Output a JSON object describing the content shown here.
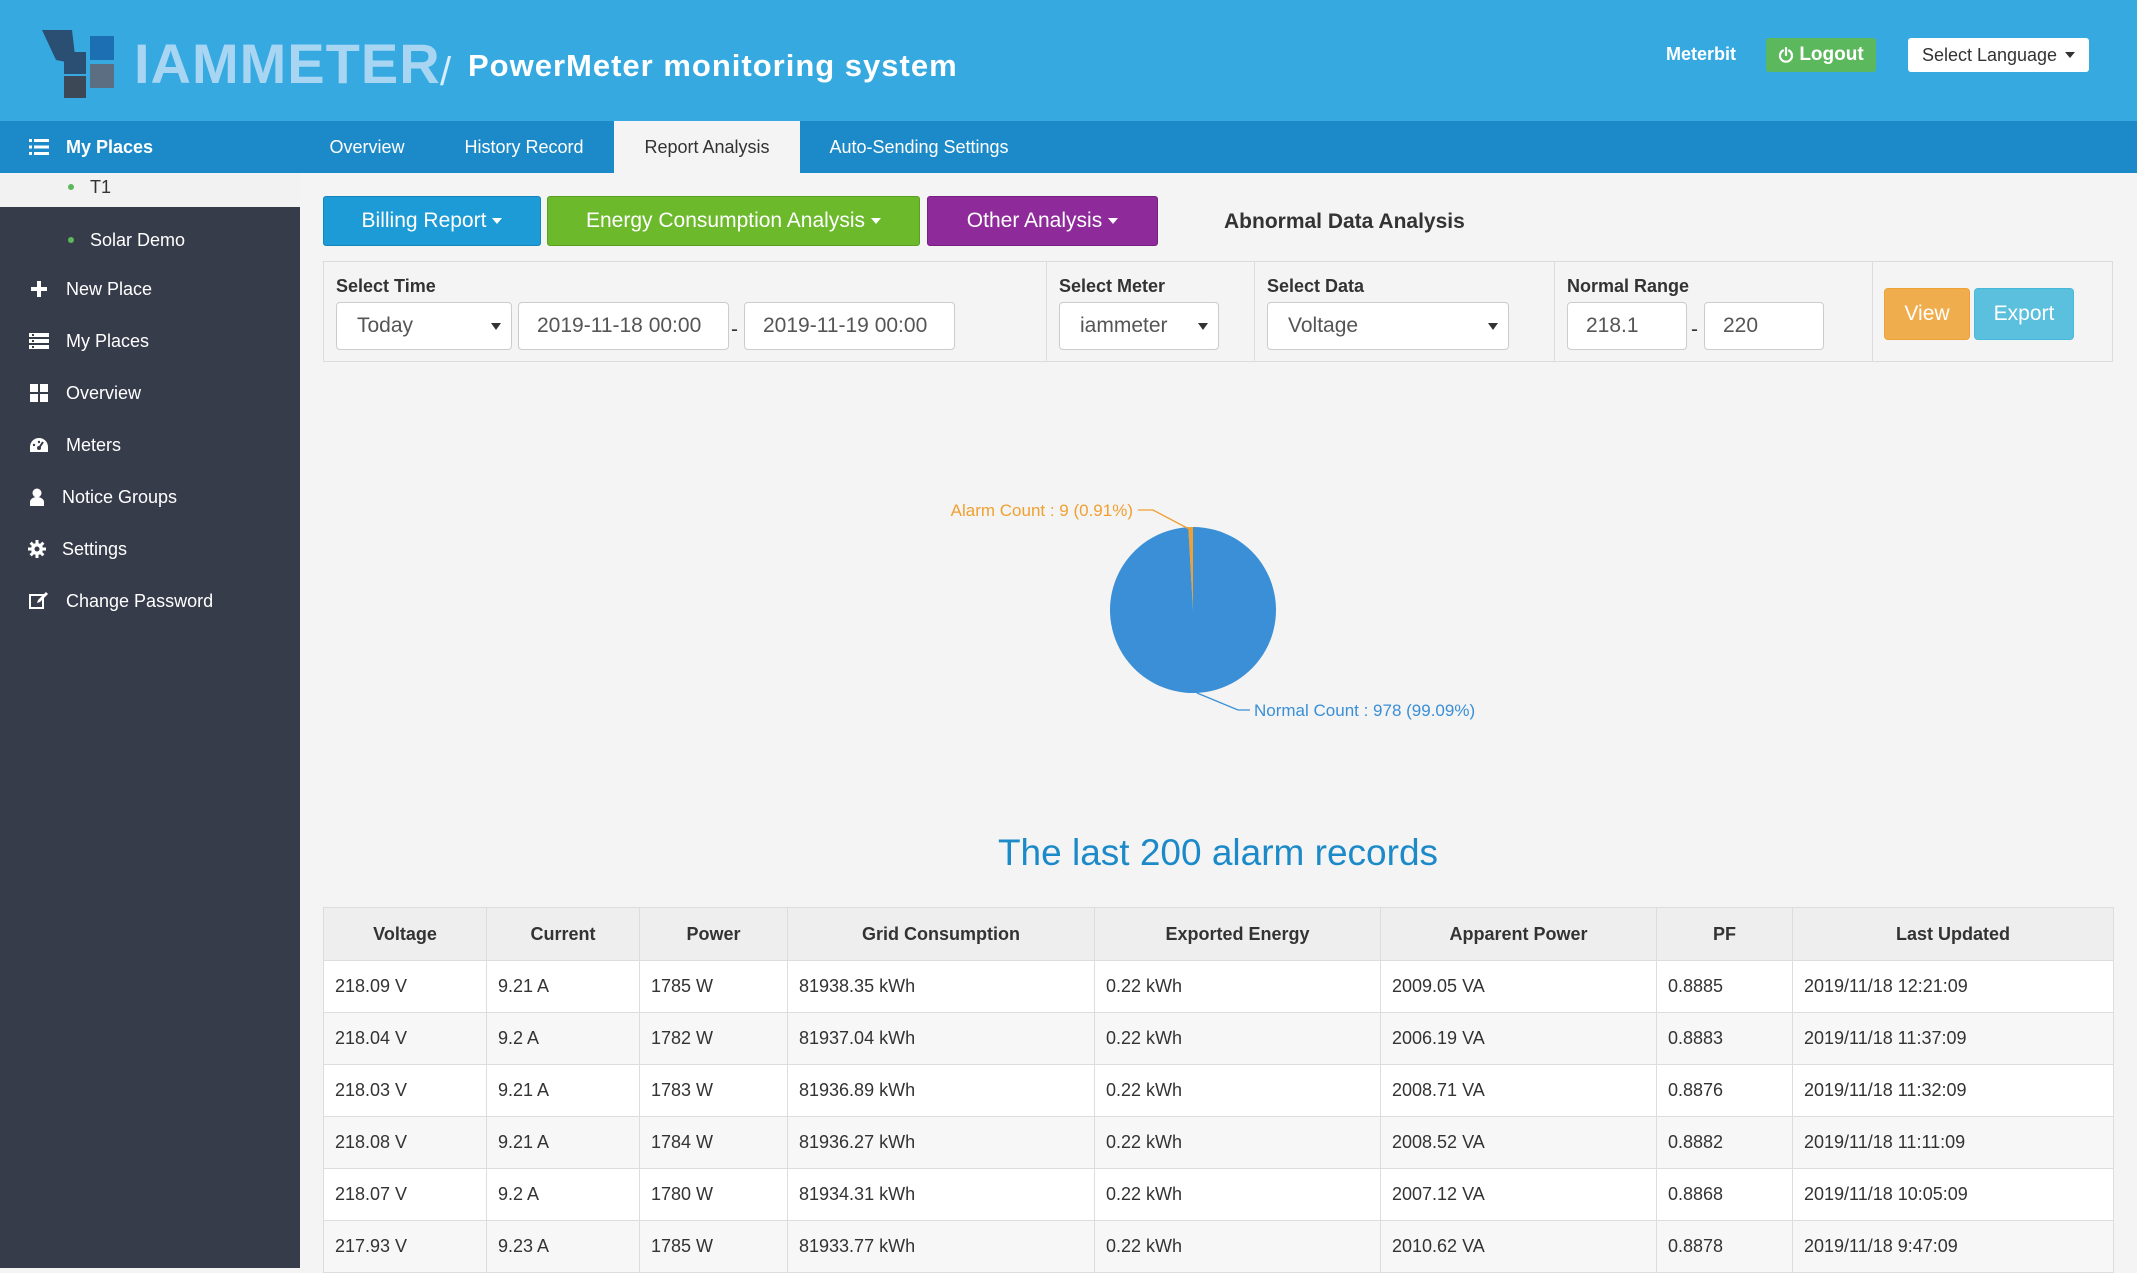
{
  "header": {
    "logo_text": "IAMMETER",
    "system_title": "PowerMeter monitoring system",
    "user_name": "Meterbit",
    "logout_label": "Logout",
    "language_label": "Select Language"
  },
  "sidebar": {
    "head_label": "My Places",
    "places": [
      {
        "label": "T1"
      },
      {
        "label": "Solar Demo"
      }
    ],
    "nav": [
      {
        "label": "New Place",
        "icon": "plus-icon"
      },
      {
        "label": "My Places",
        "icon": "list-icon"
      },
      {
        "label": "Overview",
        "icon": "grid-icon"
      },
      {
        "label": "Meters",
        "icon": "dashboard-icon"
      },
      {
        "label": "Notice Groups",
        "icon": "user-icon"
      },
      {
        "label": "Settings",
        "icon": "gear-icon"
      },
      {
        "label": "Change Password",
        "icon": "edit-icon"
      }
    ]
  },
  "tabs": [
    {
      "label": "Overview"
    },
    {
      "label": "History Record"
    },
    {
      "label": "Report Analysis"
    },
    {
      "label": "Auto-Sending Settings"
    }
  ],
  "active_tab": "Report Analysis",
  "report_menu": {
    "billing_label": "Billing Report",
    "energy_label": "Energy Consumption Analysis",
    "other_label": "Other Analysis",
    "abnormal_label": "Abnormal Data Analysis"
  },
  "filter": {
    "time_label": "Select Time",
    "time_value": "Today",
    "start": "2019-11-18 00:00",
    "end": "2019-11-19 00:00",
    "meter_label": "Select Meter",
    "meter_value": "iammeter",
    "data_label": "Select Data",
    "data_value": "Voltage",
    "range_label": "Normal Range",
    "range_min": "218.1",
    "range_max": "220",
    "view_label": "View",
    "export_label": "Export"
  },
  "chart_data": {
    "type": "pie",
    "slices": [
      {
        "label": "Alarm Count : 9 (0.91%)",
        "name": "Alarm Count",
        "value": 9,
        "percent": 0.91,
        "color": "#f0a030"
      },
      {
        "label": "Normal Count : 978 (99.09%)",
        "name": "Normal Count",
        "value": 978,
        "percent": 99.09,
        "color": "#3a8fd6"
      }
    ]
  },
  "records": {
    "title": "The last 200 alarm records",
    "columns": [
      "Voltage",
      "Current",
      "Power",
      "Grid Consumption",
      "Exported Energy",
      "Apparent Power",
      "PF",
      "Last Updated"
    ],
    "rows": [
      [
        "218.09 V",
        "9.21 A",
        "1785 W",
        "81938.35 kWh",
        "0.22 kWh",
        "2009.05 VA",
        "0.8885",
        "2019/11/18 12:21:09"
      ],
      [
        "218.04 V",
        "9.2 A",
        "1782 W",
        "81937.04 kWh",
        "0.22 kWh",
        "2006.19 VA",
        "0.8883",
        "2019/11/18 11:37:09"
      ],
      [
        "218.03 V",
        "9.21 A",
        "1783 W",
        "81936.89 kWh",
        "0.22 kWh",
        "2008.71 VA",
        "0.8876",
        "2019/11/18 11:32:09"
      ],
      [
        "218.08 V",
        "9.21 A",
        "1784 W",
        "81936.27 kWh",
        "0.22 kWh",
        "2008.52 VA",
        "0.8882",
        "2019/11/18 11:11:09"
      ],
      [
        "218.07 V",
        "9.2 A",
        "1780 W",
        "81934.31 kWh",
        "0.22 kWh",
        "2007.12 VA",
        "0.8868",
        "2019/11/18 10:05:09"
      ],
      [
        "217.93 V",
        "9.23 A",
        "1785 W",
        "81933.77 kWh",
        "0.22 kWh",
        "2010.62 VA",
        "0.8878",
        "2019/11/18 9:47:09"
      ]
    ]
  },
  "colors": {
    "header_bg": "#36a9e1",
    "tabbar_bg": "#1c8ac8",
    "sidebar_bg": "#373c4a",
    "billing_btn": "#1c9bd6",
    "energy_btn": "#6cb92c",
    "other_btn": "#8e2a99",
    "view_btn": "#f0ad4e",
    "export_btn": "#5bc0de"
  }
}
